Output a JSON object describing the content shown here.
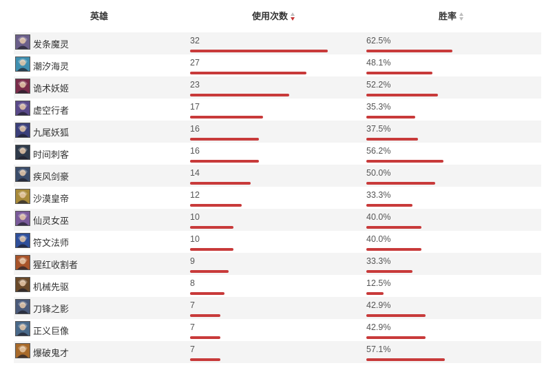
{
  "header": {
    "hero": "英雄",
    "uses": "使用次数",
    "winrate": "胜率"
  },
  "scale": {
    "uses_max": 32,
    "winrate_max": 62.5
  },
  "colors": {
    "bar": "#c83a3a",
    "sort_active": "#c43434",
    "sort_inactive": "#bdbdbd",
    "row_shade": "#f4f4f4"
  },
  "rows": [
    {
      "name": "发条魔灵",
      "uses": "32",
      "winrate": "62.5%",
      "icon": "orianna-portrait",
      "tone": "#6b5f8a"
    },
    {
      "name": "潮汐海灵",
      "uses": "27",
      "winrate": "48.1%",
      "icon": "fizz-portrait",
      "tone": "#3f8fb0"
    },
    {
      "name": "诡术妖姬",
      "uses": "23",
      "winrate": "52.2%",
      "icon": "leblanc-portrait",
      "tone": "#7a2c4a"
    },
    {
      "name": "虚空行者",
      "uses": "17",
      "winrate": "35.3%",
      "icon": "kassadin-portrait",
      "tone": "#5a4a8a"
    },
    {
      "name": "九尾妖狐",
      "uses": "16",
      "winrate": "37.5%",
      "icon": "ahri-portrait",
      "tone": "#3b3f7a"
    },
    {
      "name": "时间刺客",
      "uses": "16",
      "winrate": "56.2%",
      "icon": "ekko-portrait",
      "tone": "#2f3a4a"
    },
    {
      "name": "疾风剑豪",
      "uses": "14",
      "winrate": "50.0%",
      "icon": "yasuo-portrait",
      "tone": "#3a4c6a"
    },
    {
      "name": "沙漠皇帝",
      "uses": "12",
      "winrate": "33.3%",
      "icon": "azir-portrait",
      "tone": "#a88a3a"
    },
    {
      "name": "仙灵女巫",
      "uses": "10",
      "winrate": "40.0%",
      "icon": "lulu-portrait",
      "tone": "#7a5a9a"
    },
    {
      "name": "符文法师",
      "uses": "10",
      "winrate": "40.0%",
      "icon": "ryze-portrait",
      "tone": "#2f4f9a"
    },
    {
      "name": "猩红收割者",
      "uses": "9",
      "winrate": "33.3%",
      "icon": "vladimir-portrait",
      "tone": "#a8542a"
    },
    {
      "name": "机械先驱",
      "uses": "8",
      "winrate": "12.5%",
      "icon": "viktor-portrait",
      "tone": "#6a4a2a"
    },
    {
      "name": "刀锋之影",
      "uses": "7",
      "winrate": "42.9%",
      "icon": "talon-portrait",
      "tone": "#4a5a7a"
    },
    {
      "name": "正义巨像",
      "uses": "7",
      "winrate": "42.9%",
      "icon": "galio-portrait",
      "tone": "#4a6a8a"
    },
    {
      "name": "爆破鬼才",
      "uses": "7",
      "winrate": "57.1%",
      "icon": "ziggs-portrait",
      "tone": "#a86a2a"
    }
  ]
}
